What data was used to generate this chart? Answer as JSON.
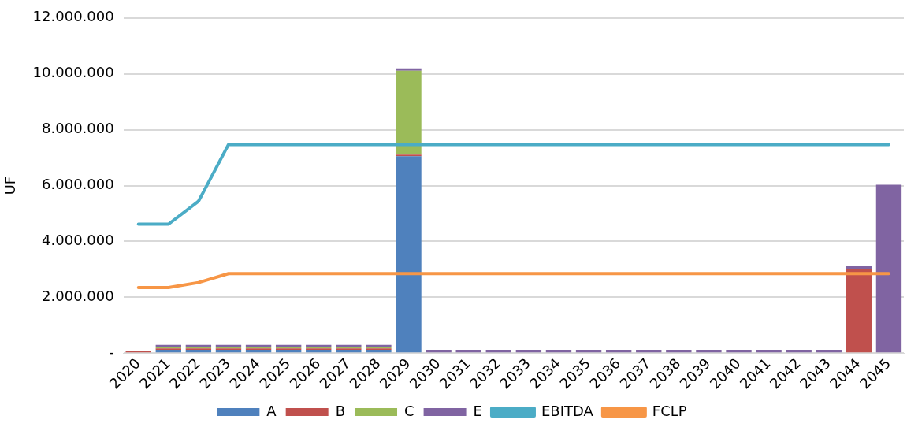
{
  "chart_data": {
    "type": "bar",
    "stacked": true,
    "ylabel": "UF",
    "grid": "y",
    "legend": "bottom",
    "marker": "none",
    "categories": [
      "2020",
      "2021",
      "2022",
      "2023",
      "2024",
      "2025",
      "2026",
      "2027",
      "2028",
      "2029",
      "2030",
      "2031",
      "2032",
      "2033",
      "2034",
      "2035",
      "2036",
      "2037",
      "2038",
      "2039",
      "2040",
      "2041",
      "2042",
      "2043",
      "2044",
      "2045"
    ],
    "ylim": [
      0,
      12000000
    ],
    "yticks": [
      {
        "value": 0,
        "label": "-"
      },
      {
        "value": 2000000,
        "label": "2.000.000"
      },
      {
        "value": 4000000,
        "label": "4.000.000"
      },
      {
        "value": 6000000,
        "label": "6.000.000"
      },
      {
        "value": 8000000,
        "label": "8.000.000"
      },
      {
        "value": 10000000,
        "label": "10.000.000"
      },
      {
        "value": 12000000,
        "label": "12.000.000"
      }
    ],
    "series": [
      {
        "name": "A",
        "color": "#4f81bd",
        "values": [
          30000,
          120000,
          120000,
          120000,
          120000,
          120000,
          120000,
          120000,
          120000,
          7050000,
          0,
          0,
          0,
          0,
          0,
          0,
          0,
          0,
          0,
          0,
          0,
          0,
          0,
          0,
          0,
          0
        ]
      },
      {
        "name": "B",
        "color": "#c0504d",
        "values": [
          60000,
          50000,
          50000,
          50000,
          50000,
          50000,
          50000,
          50000,
          50000,
          60000,
          30000,
          30000,
          30000,
          30000,
          30000,
          30000,
          30000,
          30000,
          30000,
          30000,
          30000,
          30000,
          30000,
          30000,
          3020000,
          0
        ]
      },
      {
        "name": "C",
        "color": "#9bbb59",
        "values": [
          0,
          40000,
          40000,
          40000,
          40000,
          40000,
          40000,
          40000,
          40000,
          3000000,
          0,
          0,
          0,
          0,
          0,
          0,
          0,
          0,
          0,
          0,
          0,
          0,
          0,
          0,
          0,
          0
        ]
      },
      {
        "name": "E",
        "color": "#8064a2",
        "values": [
          0,
          90000,
          90000,
          90000,
          90000,
          90000,
          90000,
          90000,
          90000,
          90000,
          90000,
          90000,
          90000,
          90000,
          90000,
          90000,
          90000,
          90000,
          90000,
          90000,
          90000,
          90000,
          90000,
          90000,
          90000,
          6030000
        ]
      },
      {
        "name": "EBITDA",
        "type": "line",
        "color": "#4bacc6",
        "values": [
          4620000,
          4620000,
          5440000,
          7470000,
          7470000,
          7470000,
          7470000,
          7470000,
          7470000,
          7470000,
          7470000,
          7470000,
          7470000,
          7470000,
          7470000,
          7470000,
          7470000,
          7470000,
          7470000,
          7470000,
          7470000,
          7470000,
          7470000,
          7470000,
          7470000,
          7470000
        ]
      },
      {
        "name": "FCLP",
        "type": "line",
        "color": "#f79646",
        "values": [
          2350000,
          2350000,
          2530000,
          2850000,
          2850000,
          2850000,
          2850000,
          2850000,
          2850000,
          2850000,
          2850000,
          2850000,
          2850000,
          2850000,
          2850000,
          2850000,
          2850000,
          2850000,
          2850000,
          2850000,
          2850000,
          2850000,
          2850000,
          2850000,
          2850000,
          2850000
        ]
      }
    ]
  }
}
